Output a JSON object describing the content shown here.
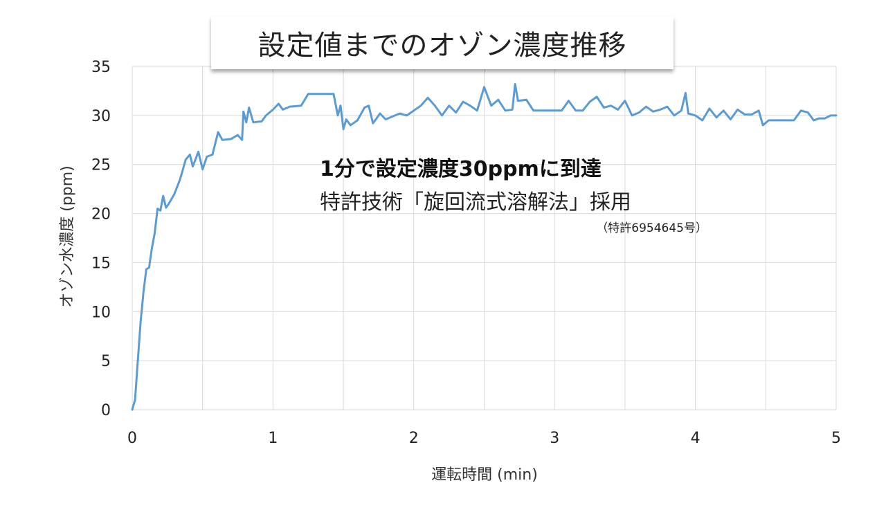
{
  "chart_data": {
    "type": "line",
    "title": "設定値までのオゾン濃度推移",
    "xlabel": "運転時間 (min)",
    "ylabel": "オゾン水濃度 (ppm)",
    "xlim": [
      0,
      5
    ],
    "ylim": [
      0,
      35
    ],
    "x_ticks": [
      "0",
      "1",
      "2",
      "3",
      "4",
      "5"
    ],
    "y_ticks": [
      "0",
      "5",
      "10",
      "15",
      "20",
      "25",
      "30",
      "35"
    ],
    "grid": "vertical and horizontal",
    "line_color": "#5b9bd5",
    "annotations": {
      "headline": "1分で設定濃度30ppmに到達",
      "subtitle": "特許技術「旋回流式溶解法」採用",
      "note": "（特許6954645号）"
    },
    "series": [
      {
        "values": [
          [
            0.0,
            0.0
          ],
          [
            0.02,
            1.0
          ],
          [
            0.04,
            5.0
          ],
          [
            0.06,
            9.0
          ],
          [
            0.08,
            12.0
          ],
          [
            0.1,
            14.3
          ],
          [
            0.12,
            14.5
          ],
          [
            0.14,
            16.5
          ],
          [
            0.16,
            18.0
          ],
          [
            0.18,
            20.5
          ],
          [
            0.2,
            20.3
          ],
          [
            0.22,
            21.8
          ],
          [
            0.24,
            20.6
          ],
          [
            0.26,
            21.0
          ],
          [
            0.3,
            22.0
          ],
          [
            0.34,
            23.5
          ],
          [
            0.38,
            25.5
          ],
          [
            0.41,
            26.0
          ],
          [
            0.43,
            24.8
          ],
          [
            0.47,
            26.3
          ],
          [
            0.5,
            24.5
          ],
          [
            0.53,
            25.8
          ],
          [
            0.57,
            26.0
          ],
          [
            0.61,
            28.3
          ],
          [
            0.64,
            27.5
          ],
          [
            0.7,
            27.6
          ],
          [
            0.75,
            28.0
          ],
          [
            0.78,
            27.5
          ],
          [
            0.79,
            30.4
          ],
          [
            0.81,
            29.3
          ],
          [
            0.83,
            30.8
          ],
          [
            0.86,
            29.3
          ],
          [
            0.92,
            29.4
          ],
          [
            0.95,
            30.0
          ],
          [
            1.0,
            30.6
          ],
          [
            1.04,
            31.2
          ],
          [
            1.07,
            30.6
          ],
          [
            1.12,
            30.9
          ],
          [
            1.2,
            31.0
          ],
          [
            1.25,
            32.2
          ],
          [
            1.43,
            32.2
          ],
          [
            1.46,
            30.0
          ],
          [
            1.48,
            31.0
          ],
          [
            1.5,
            28.6
          ],
          [
            1.52,
            29.6
          ],
          [
            1.55,
            29.0
          ],
          [
            1.6,
            29.5
          ],
          [
            1.65,
            30.8
          ],
          [
            1.68,
            31.0
          ],
          [
            1.71,
            29.2
          ],
          [
            1.76,
            30.2
          ],
          [
            1.8,
            29.6
          ],
          [
            1.9,
            30.2
          ],
          [
            1.95,
            30.0
          ],
          [
            2.0,
            30.5
          ],
          [
            2.05,
            31.0
          ],
          [
            2.1,
            31.8
          ],
          [
            2.15,
            31.0
          ],
          [
            2.2,
            30.0
          ],
          [
            2.25,
            31.0
          ],
          [
            2.3,
            30.3
          ],
          [
            2.35,
            31.4
          ],
          [
            2.4,
            31.0
          ],
          [
            2.45,
            30.5
          ],
          [
            2.5,
            32.9
          ],
          [
            2.55,
            31.0
          ],
          [
            2.6,
            31.6
          ],
          [
            2.65,
            30.5
          ],
          [
            2.7,
            30.6
          ],
          [
            2.72,
            33.2
          ],
          [
            2.74,
            31.5
          ],
          [
            2.8,
            31.6
          ],
          [
            2.85,
            30.5
          ],
          [
            2.95,
            30.5
          ],
          [
            3.05,
            30.5
          ],
          [
            3.1,
            31.5
          ],
          [
            3.15,
            30.5
          ],
          [
            3.2,
            30.5
          ],
          [
            3.25,
            31.4
          ],
          [
            3.3,
            31.9
          ],
          [
            3.35,
            30.8
          ],
          [
            3.4,
            31.0
          ],
          [
            3.45,
            30.6
          ],
          [
            3.5,
            31.5
          ],
          [
            3.55,
            30.0
          ],
          [
            3.6,
            30.3
          ],
          [
            3.65,
            30.9
          ],
          [
            3.7,
            30.4
          ],
          [
            3.75,
            30.6
          ],
          [
            3.8,
            30.9
          ],
          [
            3.85,
            30.0
          ],
          [
            3.9,
            30.5
          ],
          [
            3.93,
            32.3
          ],
          [
            3.95,
            30.2
          ],
          [
            4.0,
            30.0
          ],
          [
            4.05,
            29.5
          ],
          [
            4.1,
            30.7
          ],
          [
            4.15,
            29.8
          ],
          [
            4.2,
            30.5
          ],
          [
            4.25,
            29.6
          ],
          [
            4.3,
            30.6
          ],
          [
            4.35,
            30.1
          ],
          [
            4.4,
            30.1
          ],
          [
            4.45,
            30.5
          ],
          [
            4.48,
            29.0
          ],
          [
            4.52,
            29.5
          ],
          [
            4.7,
            29.5
          ],
          [
            4.75,
            30.5
          ],
          [
            4.8,
            30.3
          ],
          [
            4.84,
            29.5
          ],
          [
            4.88,
            29.7
          ],
          [
            4.92,
            29.7
          ],
          [
            4.96,
            30.0
          ],
          [
            5.0,
            30.0
          ]
        ]
      }
    ]
  }
}
